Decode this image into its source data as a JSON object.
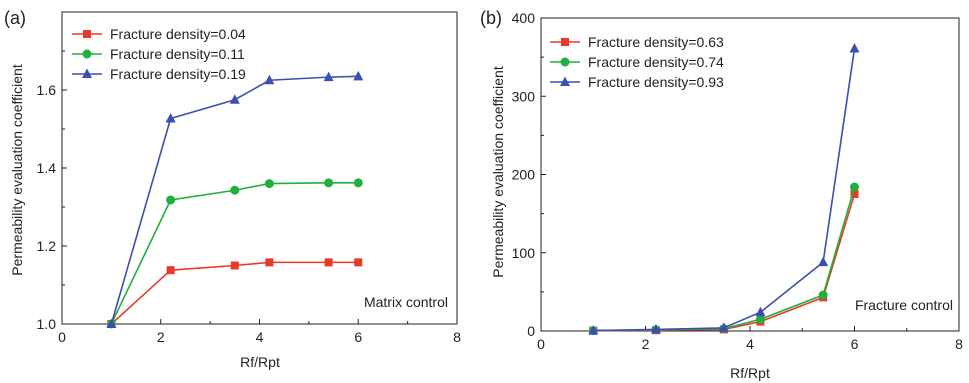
{
  "chart_data": [
    {
      "type": "line",
      "panel_label": "(a)",
      "xlabel": "Rf/Rpt",
      "ylabel": "Permeability evaluation coefficient",
      "xlim": [
        0,
        8
      ],
      "ylim": [
        1.0,
        1.8
      ],
      "xticks": [
        0,
        2,
        4,
        6,
        8
      ],
      "yticks": [
        1.0,
        1.2,
        1.4,
        1.6
      ],
      "annotation": "Matrix control",
      "legend_position": "top-left",
      "x": [
        1,
        2.2,
        3.5,
        4.2,
        5.4,
        6
      ],
      "series": [
        {
          "name": "Fracture density=0.04",
          "color": "#e8392b",
          "marker": "square",
          "values": [
            1.0,
            1.138,
            1.15,
            1.158,
            1.158,
            1.158
          ]
        },
        {
          "name": "Fracture density=0.11",
          "color": "#22b03c",
          "marker": "circle",
          "values": [
            1.0,
            1.318,
            1.343,
            1.36,
            1.362,
            1.362
          ]
        },
        {
          "name": "Fracture density=0.19",
          "color": "#3c4fb0",
          "marker": "triangle",
          "values": [
            1.0,
            1.527,
            1.575,
            1.625,
            1.633,
            1.635
          ]
        }
      ]
    },
    {
      "type": "line",
      "panel_label": "(b)",
      "xlabel": "Rf/Rpt",
      "ylabel": "Permeability evaluation coefficient",
      "xlim": [
        0,
        8
      ],
      "ylim": [
        0,
        400
      ],
      "xticks": [
        0,
        2,
        4,
        6,
        8
      ],
      "yticks": [
        0,
        100,
        200,
        300,
        400
      ],
      "annotation": "Fracture control",
      "legend_position": "top-left",
      "x": [
        1,
        2.2,
        3.5,
        4.2,
        5.4,
        6
      ],
      "series": [
        {
          "name": "Fracture density=0.63",
          "color": "#e8392b",
          "marker": "square",
          "values": [
            0.5,
            1,
            2,
            12,
            43,
            175
          ]
        },
        {
          "name": "Fracture density=0.74",
          "color": "#22b03c",
          "marker": "circle",
          "values": [
            0.5,
            1.5,
            3,
            15,
            46,
            184
          ]
        },
        {
          "name": "Fracture density=0.93",
          "color": "#3c4fb0",
          "marker": "triangle",
          "values": [
            0.5,
            2,
            4,
            24,
            88,
            361
          ]
        }
      ]
    }
  ]
}
